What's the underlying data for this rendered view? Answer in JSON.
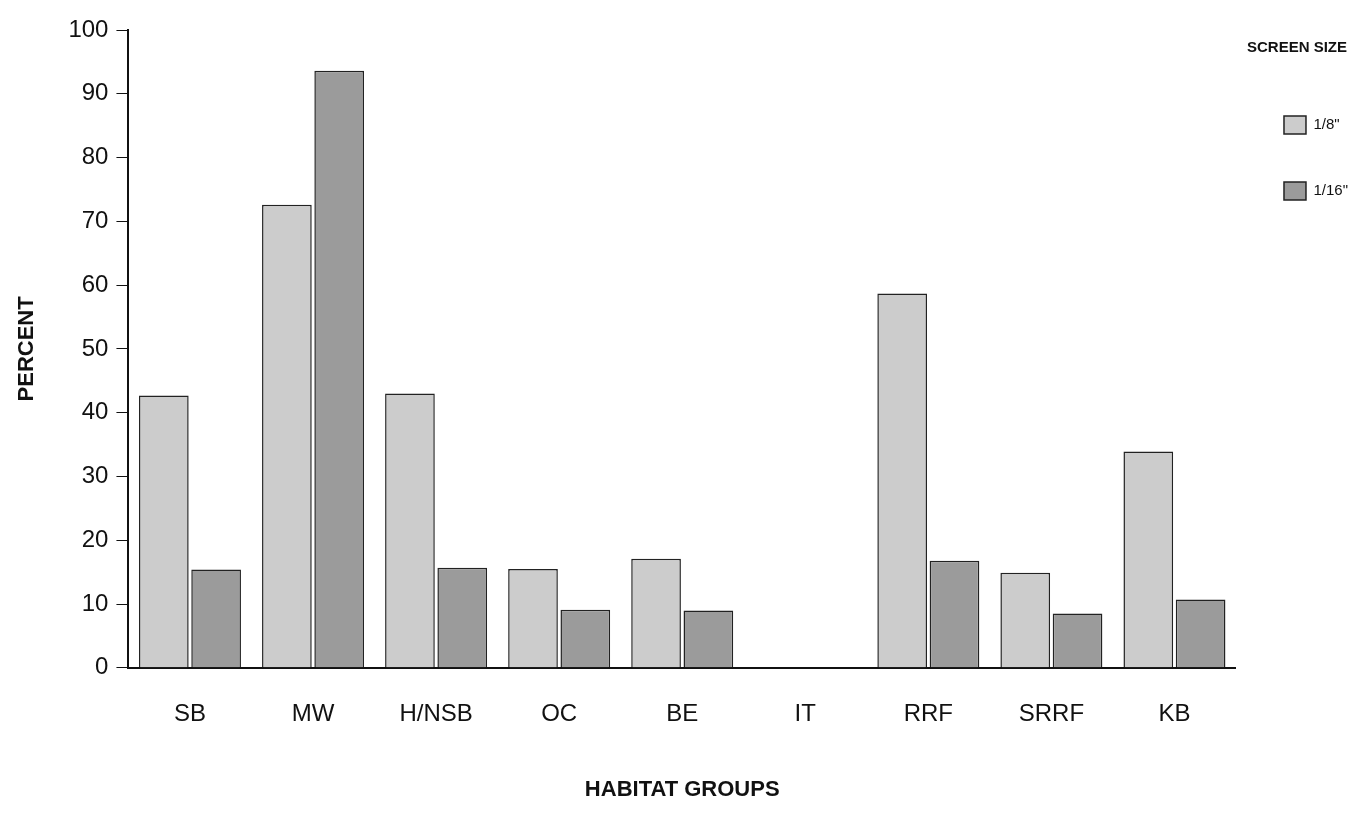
{
  "chart_data": {
    "type": "bar",
    "xlabel": "HABITAT GROUPS",
    "ylabel": "PERCENT",
    "legend_title": "SCREEN SIZE",
    "categories": [
      "SB",
      "MW",
      "H/NSB",
      "OC",
      "BE",
      "IT",
      "RRF",
      "SRRF",
      "KB"
    ],
    "series": [
      {
        "name": "1/8\"",
        "color": "#cccccc",
        "values": [
          42.7,
          72.6,
          43,
          15.5,
          17.1,
          null,
          58.7,
          14.9,
          33.9
        ]
      },
      {
        "name": "1/16\"",
        "color": "#9b9b9b",
        "values": [
          15.4,
          93.6,
          15.7,
          9.1,
          9,
          null,
          16.8,
          8.5,
          10.7
        ]
      }
    ],
    "ylim": [
      0,
      100
    ],
    "yticks": [
      0,
      10,
      20,
      30,
      40,
      50,
      60,
      70,
      80,
      90,
      100
    ],
    "grid": false,
    "legend": "top right"
  }
}
